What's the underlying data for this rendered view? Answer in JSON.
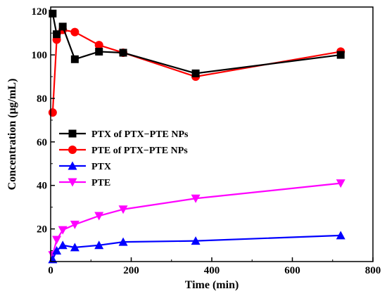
{
  "chart_data": {
    "type": "line",
    "xlabel": "Time (min)",
    "ylabel": "Concentration (μg/mL)",
    "xlim": [
      0,
      800
    ],
    "ylim": [
      5,
      122
    ],
    "xticks": [
      0,
      200,
      400,
      600,
      800
    ],
    "yticks": [
      20,
      40,
      60,
      80,
      100,
      120
    ],
    "grid": false,
    "legend_position": "center-left",
    "series": [
      {
        "name": "PTX of PTX−PTE NPs",
        "color": "#000000",
        "marker": "square",
        "x": [
          5,
          15,
          30,
          60,
          120,
          180,
          360,
          720
        ],
        "y": [
          119,
          109.5,
          113,
          98,
          101.5,
          101,
          91.5,
          100
        ]
      },
      {
        "name": "PTE of PTX−PTE NPs",
        "color": "#ff0000",
        "marker": "circle",
        "x": [
          5,
          15,
          30,
          60,
          120,
          180,
          360,
          720
        ],
        "y": [
          73.5,
          107,
          111.5,
          110.5,
          104.5,
          101,
          90,
          101.5
        ]
      },
      {
        "name": "PTX",
        "color": "#0000ff",
        "marker": "triangle-up",
        "x": [
          5,
          15,
          30,
          60,
          120,
          180,
          360,
          720
        ],
        "y": [
          6,
          10,
          12.5,
          11.5,
          12.5,
          14,
          14.5,
          17
        ]
      },
      {
        "name": "PTE",
        "color": "#ff00ff",
        "marker": "triangle-down",
        "x": [
          5,
          15,
          30,
          60,
          120,
          180,
          360,
          720
        ],
        "y": [
          8,
          15,
          19.5,
          22,
          26,
          29,
          34,
          41
        ]
      }
    ]
  }
}
